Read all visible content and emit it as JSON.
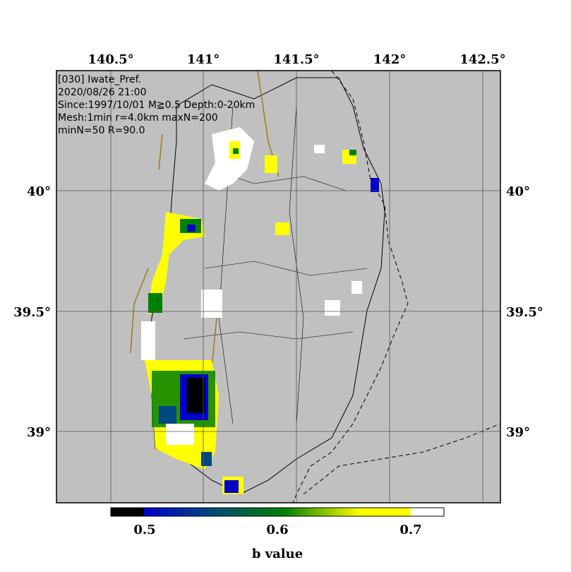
{
  "map": {
    "header": [
      "[030] Iwate_Pref.",
      "2020/08/26 21:00",
      "Since:1997/10/01 M≧0.5 Depth:0-20km",
      "Mesh:1min r=4.0km maxN=200",
      "minN=50 R=90.0"
    ],
    "lon_ticks": [
      "140.5°",
      "141°",
      "141.5°",
      "142°",
      "142.5°"
    ],
    "lat_ticks": [
      "40°",
      "39.5°",
      "39°"
    ],
    "colorbar": {
      "ticks": [
        "0.5",
        "0.6",
        "0.7"
      ],
      "label": "b value"
    }
  }
}
